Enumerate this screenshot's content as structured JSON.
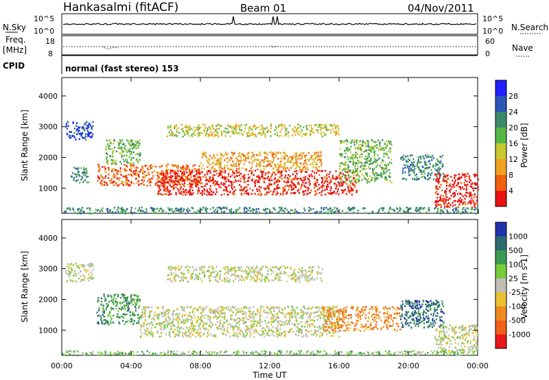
{
  "header": {
    "station": "Hankasalmi (fitACF)",
    "beam": "Beam 01",
    "date": "04/Nov/2011"
  },
  "status_panels": {
    "nsky_label": "N.Sky",
    "nsky_ticks": [
      "10^5",
      "10^0"
    ],
    "nsearch_label": "N.Search",
    "nsearch_ticks": [
      "10^5",
      "10^0"
    ],
    "freq_label": "Freq.",
    "freq_unit": "[MHz]",
    "freq_ticks": [
      "18",
      "8"
    ],
    "nave_label": "Nave",
    "nave_ticks": [
      "60",
      "0"
    ],
    "cpid_label": "CPID",
    "cpid_text": "normal (fast stereo) 153"
  },
  "chart_data": [
    {
      "type": "heatmap",
      "title": "",
      "xlabel": "Time UT",
      "ylabel": "Slant Range [km]",
      "x_ticks": [
        "00:00",
        "04:00",
        "08:00",
        "12:00",
        "16:00",
        "20:00",
        "00:00"
      ],
      "x_range_hours": [
        0,
        24
      ],
      "y_ticks": [
        "1000",
        "2000",
        "3000",
        "4000"
      ],
      "ylim": [
        180,
        4600
      ],
      "colorbar": {
        "label": "Power [dB]",
        "ticks": [
          "4",
          "8",
          "12",
          "16",
          "20",
          "24",
          "28"
        ],
        "colors": [
          "#2020ff",
          "#2a56b8",
          "#3c8a6a",
          "#55b845",
          "#c8c830",
          "#f0a020",
          "#f06010",
          "#e81010"
        ]
      },
      "regions": [
        {
          "t0": 0.2,
          "t1": 1.8,
          "r0": 2600,
          "r1": 3200,
          "level": 1
        },
        {
          "t0": 0.5,
          "t1": 1.5,
          "r0": 1200,
          "r1": 1700,
          "level": 2
        },
        {
          "t0": 2.0,
          "t1": 8.0,
          "r0": 1100,
          "r1": 1800,
          "level": 6
        },
        {
          "t0": 5.5,
          "t1": 17.0,
          "r0": 800,
          "r1": 1600,
          "level": 7
        },
        {
          "t0": 8.0,
          "t1": 15.0,
          "r0": 1600,
          "r1": 2200,
          "level": 5
        },
        {
          "t0": 2.5,
          "t1": 4.5,
          "r0": 1800,
          "r1": 2600,
          "level": 3
        },
        {
          "t0": 6.0,
          "t1": 16.0,
          "r0": 2700,
          "r1": 3100,
          "level": 4
        },
        {
          "t0": 16.0,
          "t1": 19.0,
          "r0": 1200,
          "r1": 2600,
          "level": 3
        },
        {
          "t0": 19.5,
          "t1": 22.0,
          "r0": 1300,
          "r1": 2100,
          "level": 2
        },
        {
          "t0": 21.5,
          "t1": 24.0,
          "r0": 400,
          "r1": 1500,
          "level": 7
        },
        {
          "t0": 0.0,
          "t1": 24.0,
          "r0": 200,
          "r1": 400,
          "level": 2
        }
      ]
    },
    {
      "type": "heatmap",
      "title": "",
      "xlabel": "Time UT",
      "ylabel": "Slant Range [km]",
      "x_ticks": [
        "00:00",
        "04:00",
        "08:00",
        "12:00",
        "16:00",
        "20:00",
        "00:00"
      ],
      "x_range_hours": [
        0,
        24
      ],
      "y_ticks": [
        "1000",
        "2000",
        "3000",
        "4000"
      ],
      "ylim": [
        180,
        4600
      ],
      "colorbar": {
        "label": "Velocity [m s-1]",
        "ticks": [
          "1000",
          "500",
          "100",
          "25",
          "-25",
          "-100",
          "-500",
          "-1000"
        ],
        "colors": [
          "#2233aa",
          "#2e6a72",
          "#3a9a52",
          "#78cc3a",
          "#bfbfb5",
          "#e8c030",
          "#f08a20",
          "#f06018",
          "#e81818"
        ]
      },
      "regions": [
        {
          "t0": 0.2,
          "t1": 1.8,
          "r0": 2600,
          "r1": 3200,
          "level": 4
        },
        {
          "t0": 2.0,
          "t1": 4.5,
          "r0": 1200,
          "r1": 2200,
          "level": 2
        },
        {
          "t0": 4.5,
          "t1": 16.0,
          "r0": 800,
          "r1": 1800,
          "level": 4
        },
        {
          "t0": 6.0,
          "t1": 15.0,
          "r0": 2600,
          "r1": 3100,
          "level": 4
        },
        {
          "t0": 15.0,
          "t1": 19.5,
          "r0": 1000,
          "r1": 1800,
          "level": 6
        },
        {
          "t0": 19.5,
          "t1": 22.0,
          "r0": 1100,
          "r1": 2000,
          "level": 1
        },
        {
          "t0": 21.5,
          "t1": 24.0,
          "r0": 300,
          "r1": 1200,
          "level": 4
        },
        {
          "t0": 0.0,
          "t1": 24.0,
          "r0": 200,
          "r1": 350,
          "level": 3
        }
      ]
    }
  ]
}
